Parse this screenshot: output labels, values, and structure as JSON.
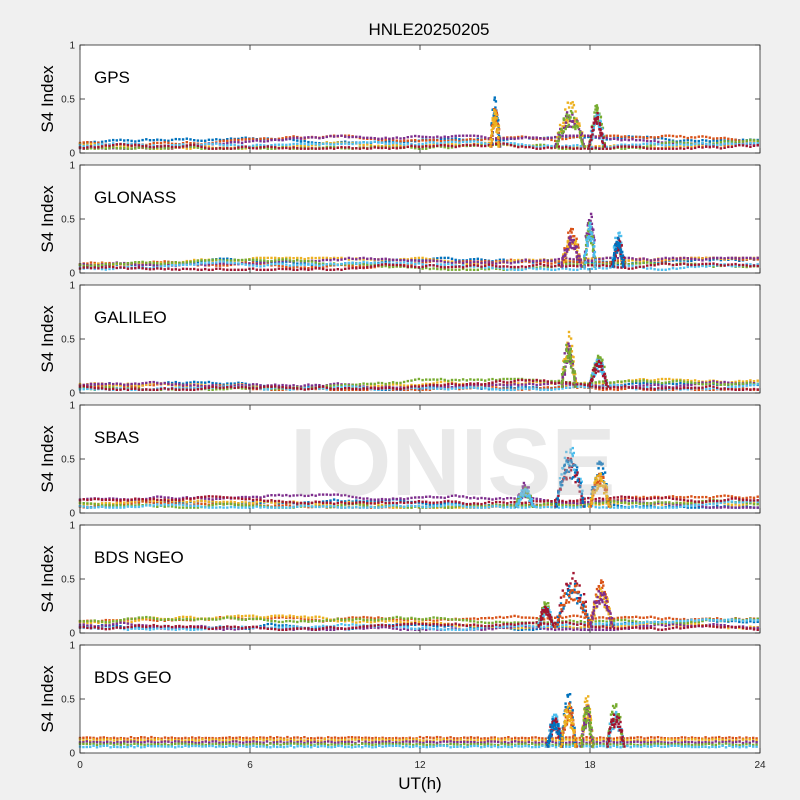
{
  "figure": {
    "title": "HNLE20250205",
    "xlabel": "UT(h)",
    "watermark": "IONISE",
    "background": "#f0f0f0",
    "axes_background": "#ffffff"
  },
  "colors": [
    "#0072bd",
    "#d95319",
    "#edb120",
    "#7e2f8e",
    "#77ac30",
    "#4dbeee",
    "#a2142f"
  ],
  "chart_data": [
    {
      "type": "scatter",
      "panel_label": "GPS",
      "ylabel": "S4 Index",
      "xlim": [
        0,
        24
      ],
      "ylim": [
        0,
        1
      ],
      "xticks": [
        0,
        6,
        12,
        18,
        24
      ],
      "yticks": [
        0,
        0.5,
        1
      ],
      "yticklabels": [
        "0",
        "0.5",
        "1"
      ],
      "xticklabels": [],
      "baseline_range": [
        0.04,
        0.16
      ],
      "bursts": [
        {
          "x": [
            14.5,
            14.8
          ],
          "peak": 0.53
        },
        {
          "x": [
            16.8,
            17.8
          ],
          "peak": 0.48
        },
        {
          "x": [
            18.0,
            18.5
          ],
          "peak": 0.47
        }
      ]
    },
    {
      "type": "scatter",
      "panel_label": "GLONASS",
      "ylabel": "S4 Index",
      "xlim": [
        0,
        24
      ],
      "ylim": [
        0,
        1
      ],
      "xticks": [
        0,
        6,
        12,
        18,
        24
      ],
      "yticks": [
        0,
        0.5,
        1
      ],
      "yticklabels": [
        "0",
        "0.5",
        "1"
      ],
      "xticklabels": [],
      "baseline_range": [
        0.03,
        0.14
      ],
      "bursts": [
        {
          "x": [
            17.0,
            17.7
          ],
          "peak": 0.42
        },
        {
          "x": [
            17.8,
            18.2
          ],
          "peak": 0.6
        },
        {
          "x": [
            18.8,
            19.2
          ],
          "peak": 0.4
        }
      ]
    },
    {
      "type": "scatter",
      "panel_label": "GALILEO",
      "ylabel": "S4 Index",
      "xlim": [
        0,
        24
      ],
      "ylim": [
        0,
        1
      ],
      "xticks": [
        0,
        6,
        12,
        18,
        24
      ],
      "yticks": [
        0,
        0.5,
        1
      ],
      "yticklabels": [
        "0",
        "0.5",
        "1"
      ],
      "xticklabels": [],
      "baseline_range": [
        0.03,
        0.13
      ],
      "bursts": [
        {
          "x": [
            17.0,
            17.5
          ],
          "peak": 0.57
        },
        {
          "x": [
            18.0,
            18.6
          ],
          "peak": 0.38
        }
      ]
    },
    {
      "type": "scatter",
      "panel_label": "SBAS",
      "ylabel": "S4 Index",
      "xlim": [
        0,
        24
      ],
      "ylim": [
        0,
        1
      ],
      "xticks": [
        0,
        6,
        12,
        18,
        24
      ],
      "yticks": [
        0,
        0.5,
        1
      ],
      "yticklabels": [
        "0",
        "0.5",
        "1"
      ],
      "xticklabels": [],
      "baseline_range": [
        0.05,
        0.17
      ],
      "bursts": [
        {
          "x": [
            15.4,
            16.0
          ],
          "peak": 0.28
        },
        {
          "x": [
            16.8,
            17.8
          ],
          "peak": 0.65
        },
        {
          "x": [
            18.0,
            18.7
          ],
          "peak": 0.48
        }
      ]
    },
    {
      "type": "scatter",
      "panel_label": "BDS NGEO",
      "ylabel": "S4 Index",
      "xlim": [
        0,
        24
      ],
      "ylim": [
        0,
        1
      ],
      "xticks": [
        0,
        6,
        12,
        18,
        24
      ],
      "yticks": [
        0,
        0.5,
        1
      ],
      "yticklabels": [
        "0",
        "0.5",
        "1"
      ],
      "xticklabels": [],
      "baseline_range": [
        0.03,
        0.16
      ],
      "bursts": [
        {
          "x": [
            16.2,
            16.7
          ],
          "peak": 0.3
        },
        {
          "x": [
            16.8,
            18.0
          ],
          "peak": 0.58
        },
        {
          "x": [
            18.0,
            18.8
          ],
          "peak": 0.5
        }
      ]
    },
    {
      "type": "scatter",
      "panel_label": "BDS GEO",
      "ylabel": "S4 Index",
      "xlim": [
        0,
        24
      ],
      "ylim": [
        0,
        1
      ],
      "xticks": [
        0,
        6,
        12,
        18,
        24
      ],
      "yticks": [
        0,
        0.5,
        1
      ],
      "yticklabels": [
        "0",
        "0.5",
        "1"
      ],
      "xticklabels": [
        "0",
        "6",
        "12",
        "18",
        "24"
      ],
      "baseline_levels": [
        0.14,
        0.12,
        0.1,
        0.08,
        0.06
      ],
      "bursts": [
        {
          "x": [
            16.5,
            17.0
          ],
          "peak": 0.4
        },
        {
          "x": [
            17.0,
            17.5
          ],
          "peak": 0.57
        },
        {
          "x": [
            17.7,
            18.1
          ],
          "peak": 0.55
        },
        {
          "x": [
            18.6,
            19.2
          ],
          "peak": 0.47
        }
      ]
    }
  ]
}
